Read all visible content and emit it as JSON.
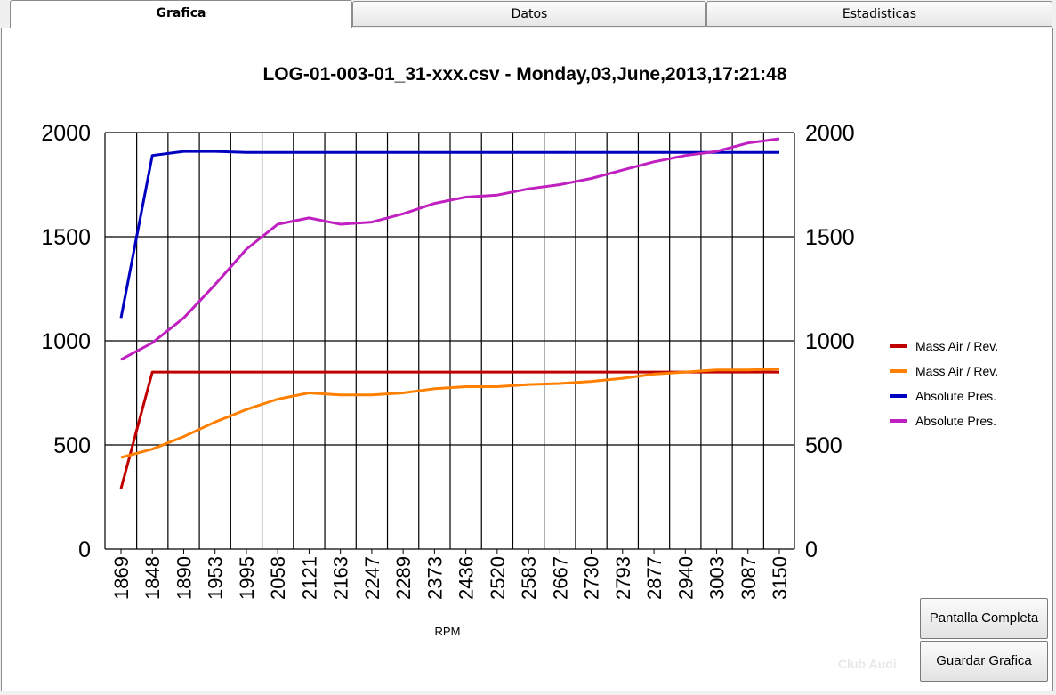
{
  "tabs": [
    {
      "label": "Grafica",
      "active": true
    },
    {
      "label": "Datos",
      "active": false
    },
    {
      "label": "Estadisticas",
      "active": false
    }
  ],
  "buttons": {
    "fullscreen_label": "Pantalla Completa",
    "save_label": "Guardar Grafica"
  },
  "watermark": "Club Audi",
  "chart_data": {
    "type": "line",
    "title": "LOG-01-003-01_31-xxx.csv - Monday,03,June,2013,17:21:48",
    "xlabel": "RPM",
    "ylabel_left": "",
    "ylabel_right": "",
    "categories": [
      "1869",
      "1848",
      "1890",
      "1953",
      "1995",
      "2058",
      "2121",
      "2163",
      "2247",
      "2289",
      "2373",
      "2436",
      "2520",
      "2583",
      "2667",
      "2730",
      "2793",
      "2877",
      "2940",
      "3003",
      "3087",
      "3150"
    ],
    "yticks": [
      0,
      500,
      1000,
      1500,
      2000
    ],
    "ylim": [
      0,
      2000
    ],
    "grid": true,
    "legend_position": "right",
    "series": [
      {
        "name": "Mass Air / Rev.",
        "color": "#c00000",
        "values": [
          290,
          850,
          850,
          850,
          850,
          850,
          850,
          850,
          850,
          850,
          850,
          850,
          850,
          850,
          850,
          850,
          850,
          850,
          850,
          850,
          850,
          850
        ]
      },
      {
        "name": "Mass Air / Rev.",
        "color": "#ff8000",
        "values": [
          440,
          480,
          540,
          610,
          670,
          720,
          750,
          740,
          740,
          750,
          770,
          780,
          780,
          790,
          795,
          805,
          820,
          840,
          850,
          860,
          860,
          865
        ]
      },
      {
        "name": "Absolute Pres.",
        "color": "#0000c0",
        "values": [
          1110,
          1890,
          1910,
          1910,
          1905,
          1905,
          1905,
          1905,
          1905,
          1905,
          1905,
          1905,
          1905,
          1905,
          1905,
          1905,
          1905,
          1905,
          1905,
          1905,
          1905,
          1905
        ]
      },
      {
        "name": "Absolute Pres.",
        "color": "#c020c0",
        "values": [
          910,
          990,
          1110,
          1270,
          1440,
          1560,
          1590,
          1560,
          1570,
          1610,
          1660,
          1690,
          1700,
          1730,
          1750,
          1780,
          1820,
          1860,
          1890,
          1910,
          1950,
          1970
        ]
      }
    ]
  }
}
